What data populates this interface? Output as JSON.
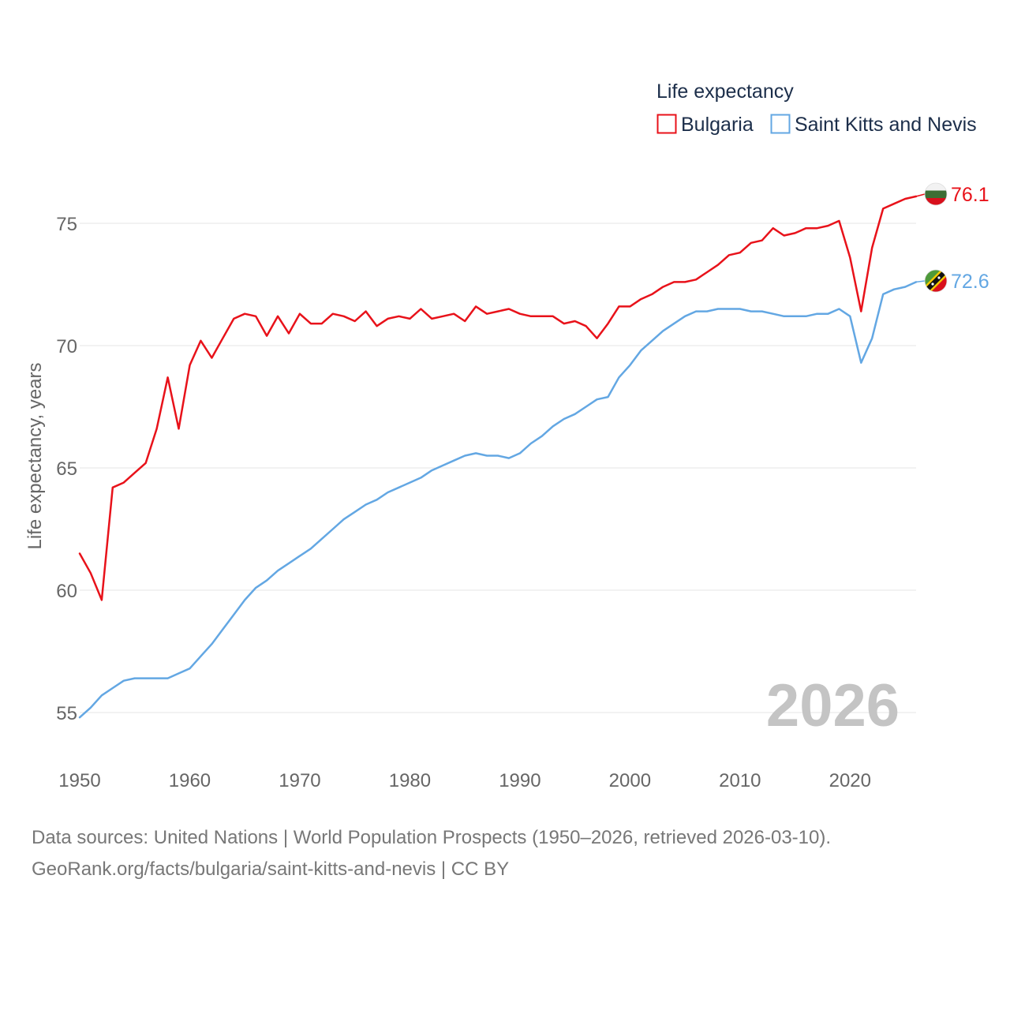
{
  "chart_data": {
    "type": "line",
    "title": "Life expectancy",
    "ylabel": "Life expectancy, years",
    "xlabel": "",
    "xlim": [
      1950,
      2026
    ],
    "ylim": [
      54,
      77
    ],
    "xticks": [
      1950,
      1960,
      1970,
      1980,
      1990,
      2000,
      2010,
      2020
    ],
    "yticks": [
      55,
      60,
      65,
      70,
      75
    ],
    "grid": true,
    "legend_position": "top-right",
    "highlight_year": "2026",
    "x": [
      1950,
      1951,
      1952,
      1953,
      1954,
      1955,
      1956,
      1957,
      1958,
      1959,
      1960,
      1961,
      1962,
      1963,
      1964,
      1965,
      1966,
      1967,
      1968,
      1969,
      1970,
      1971,
      1972,
      1973,
      1974,
      1975,
      1976,
      1977,
      1978,
      1979,
      1980,
      1981,
      1982,
      1983,
      1984,
      1985,
      1986,
      1987,
      1988,
      1989,
      1990,
      1991,
      1992,
      1993,
      1994,
      1995,
      1996,
      1997,
      1998,
      1999,
      2000,
      2001,
      2002,
      2003,
      2004,
      2005,
      2006,
      2007,
      2008,
      2009,
      2010,
      2011,
      2012,
      2013,
      2014,
      2015,
      2016,
      2017,
      2018,
      2019,
      2020,
      2021,
      2022,
      2023,
      2024,
      2025,
      2026
    ],
    "series": [
      {
        "name": "Bulgaria",
        "color": "#e8121a",
        "end_label": "76.1",
        "flag": "bulgaria-flag",
        "values": [
          61.5,
          60.7,
          59.6,
          64.2,
          64.4,
          64.8,
          65.2,
          66.6,
          68.7,
          66.6,
          69.2,
          70.2,
          69.5,
          70.3,
          71.1,
          71.3,
          71.2,
          70.4,
          71.2,
          70.5,
          71.3,
          70.9,
          70.9,
          71.3,
          71.2,
          71.0,
          71.4,
          70.8,
          71.1,
          71.2,
          71.1,
          71.5,
          71.1,
          71.2,
          71.3,
          71.0,
          71.6,
          71.3,
          71.4,
          71.5,
          71.3,
          71.2,
          71.2,
          71.2,
          70.9,
          71.0,
          70.8,
          70.3,
          70.9,
          71.6,
          71.6,
          71.9,
          72.1,
          72.4,
          72.6,
          72.6,
          72.7,
          73.0,
          73.3,
          73.7,
          73.8,
          74.2,
          74.3,
          74.8,
          74.5,
          74.6,
          74.8,
          74.8,
          74.9,
          75.1,
          73.6,
          71.4,
          74.0,
          75.6,
          75.8,
          76.0,
          76.1
        ]
      },
      {
        "name": "Saint Kitts and Nevis",
        "color": "#63a7e3",
        "end_label": "72.6",
        "flag": "saint-kitts-and-nevis-flag",
        "values": [
          54.8,
          55.2,
          55.7,
          56.0,
          56.3,
          56.4,
          56.4,
          56.4,
          56.4,
          56.6,
          56.8,
          57.3,
          57.8,
          58.4,
          59.0,
          59.6,
          60.1,
          60.4,
          60.8,
          61.1,
          61.4,
          61.7,
          62.1,
          62.5,
          62.9,
          63.2,
          63.5,
          63.7,
          64.0,
          64.2,
          64.4,
          64.6,
          64.9,
          65.1,
          65.3,
          65.5,
          65.6,
          65.5,
          65.5,
          65.4,
          65.6,
          66.0,
          66.3,
          66.7,
          67.0,
          67.2,
          67.5,
          67.8,
          67.9,
          68.7,
          69.2,
          69.8,
          70.2,
          70.6,
          70.9,
          71.2,
          71.4,
          71.4,
          71.5,
          71.5,
          71.5,
          71.4,
          71.4,
          71.3,
          71.2,
          71.2,
          71.2,
          71.3,
          71.3,
          71.5,
          71.2,
          69.3,
          70.3,
          72.1,
          72.3,
          72.4,
          72.6
        ]
      }
    ]
  },
  "footer": {
    "sources": "Data sources: United Nations | World Population Prospects (1950–2026, retrieved 2026-03-10).",
    "credit": "GeoRank.org/facts/bulgaria/saint-kitts-and-nevis | CC BY"
  }
}
